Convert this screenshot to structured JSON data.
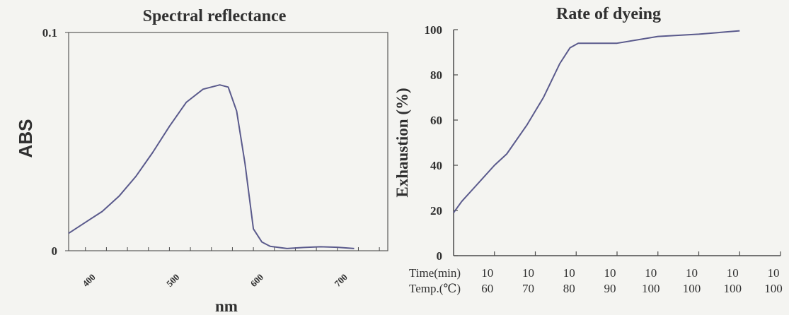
{
  "colors": {
    "background": "#f4f4f1",
    "axis": "#4a4a4a",
    "line": "#5a5a8c",
    "text": "#303030"
  },
  "chart_data": [
    {
      "type": "line",
      "title": "Spectral reflectance",
      "xlabel": "nm",
      "ylabel": "ABS",
      "xlim": [
        380,
        760
      ],
      "ylim": [
        0,
        0.1
      ],
      "xticks": [
        {
          "value": 400,
          "label": "400"
        },
        {
          "value": 500,
          "label": "500"
        },
        {
          "value": 600,
          "label": "600"
        },
        {
          "value": 700,
          "label": "700"
        }
      ],
      "yticks": [
        {
          "value": 0,
          "label": "0"
        },
        {
          "value": 0.1,
          "label": "0.1"
        }
      ],
      "grid": false,
      "series": [
        {
          "x": [
            380,
            400,
            420,
            440,
            460,
            480,
            500,
            520,
            540,
            560,
            570,
            580,
            590,
            600,
            610,
            620,
            640,
            660,
            680,
            700,
            720
          ],
          "y": [
            0.008,
            0.013,
            0.018,
            0.025,
            0.034,
            0.045,
            0.057,
            0.068,
            0.074,
            0.076,
            0.075,
            0.064,
            0.04,
            0.01,
            0.004,
            0.002,
            0.001,
            0.0015,
            0.0018,
            0.0016,
            0.001
          ]
        }
      ]
    },
    {
      "type": "line",
      "title": "Rate of dyeing",
      "xlabel": "",
      "ylabel": "Exhaustion (%)",
      "ylim": [
        0,
        100
      ],
      "yticks": [
        0,
        20,
        40,
        60,
        80,
        100
      ],
      "row_labels": [
        "Time(min)",
        "Temp.(℃)"
      ],
      "categories": [
        {
          "time": "10",
          "temp": "60"
        },
        {
          "time": "10",
          "temp": "70"
        },
        {
          "time": "10",
          "temp": "80"
        },
        {
          "time": "10",
          "temp": "90"
        },
        {
          "time": "10",
          "temp": "100"
        },
        {
          "time": "10",
          "temp": "100"
        },
        {
          "time": "10",
          "temp": "100"
        },
        {
          "time": "10",
          "temp": "100"
        }
      ],
      "grid": false,
      "series": [
        {
          "x": [
            0,
            0.2,
            0.5,
            1,
            1.3,
            1.8,
            2.2,
            2.6,
            2.85,
            3.05,
            3.4,
            4,
            5,
            6,
            7
          ],
          "y": [
            19,
            24,
            30,
            40,
            45,
            58,
            70,
            85,
            92,
            94,
            94,
            94,
            97,
            98,
            99.5
          ]
        }
      ]
    }
  ]
}
